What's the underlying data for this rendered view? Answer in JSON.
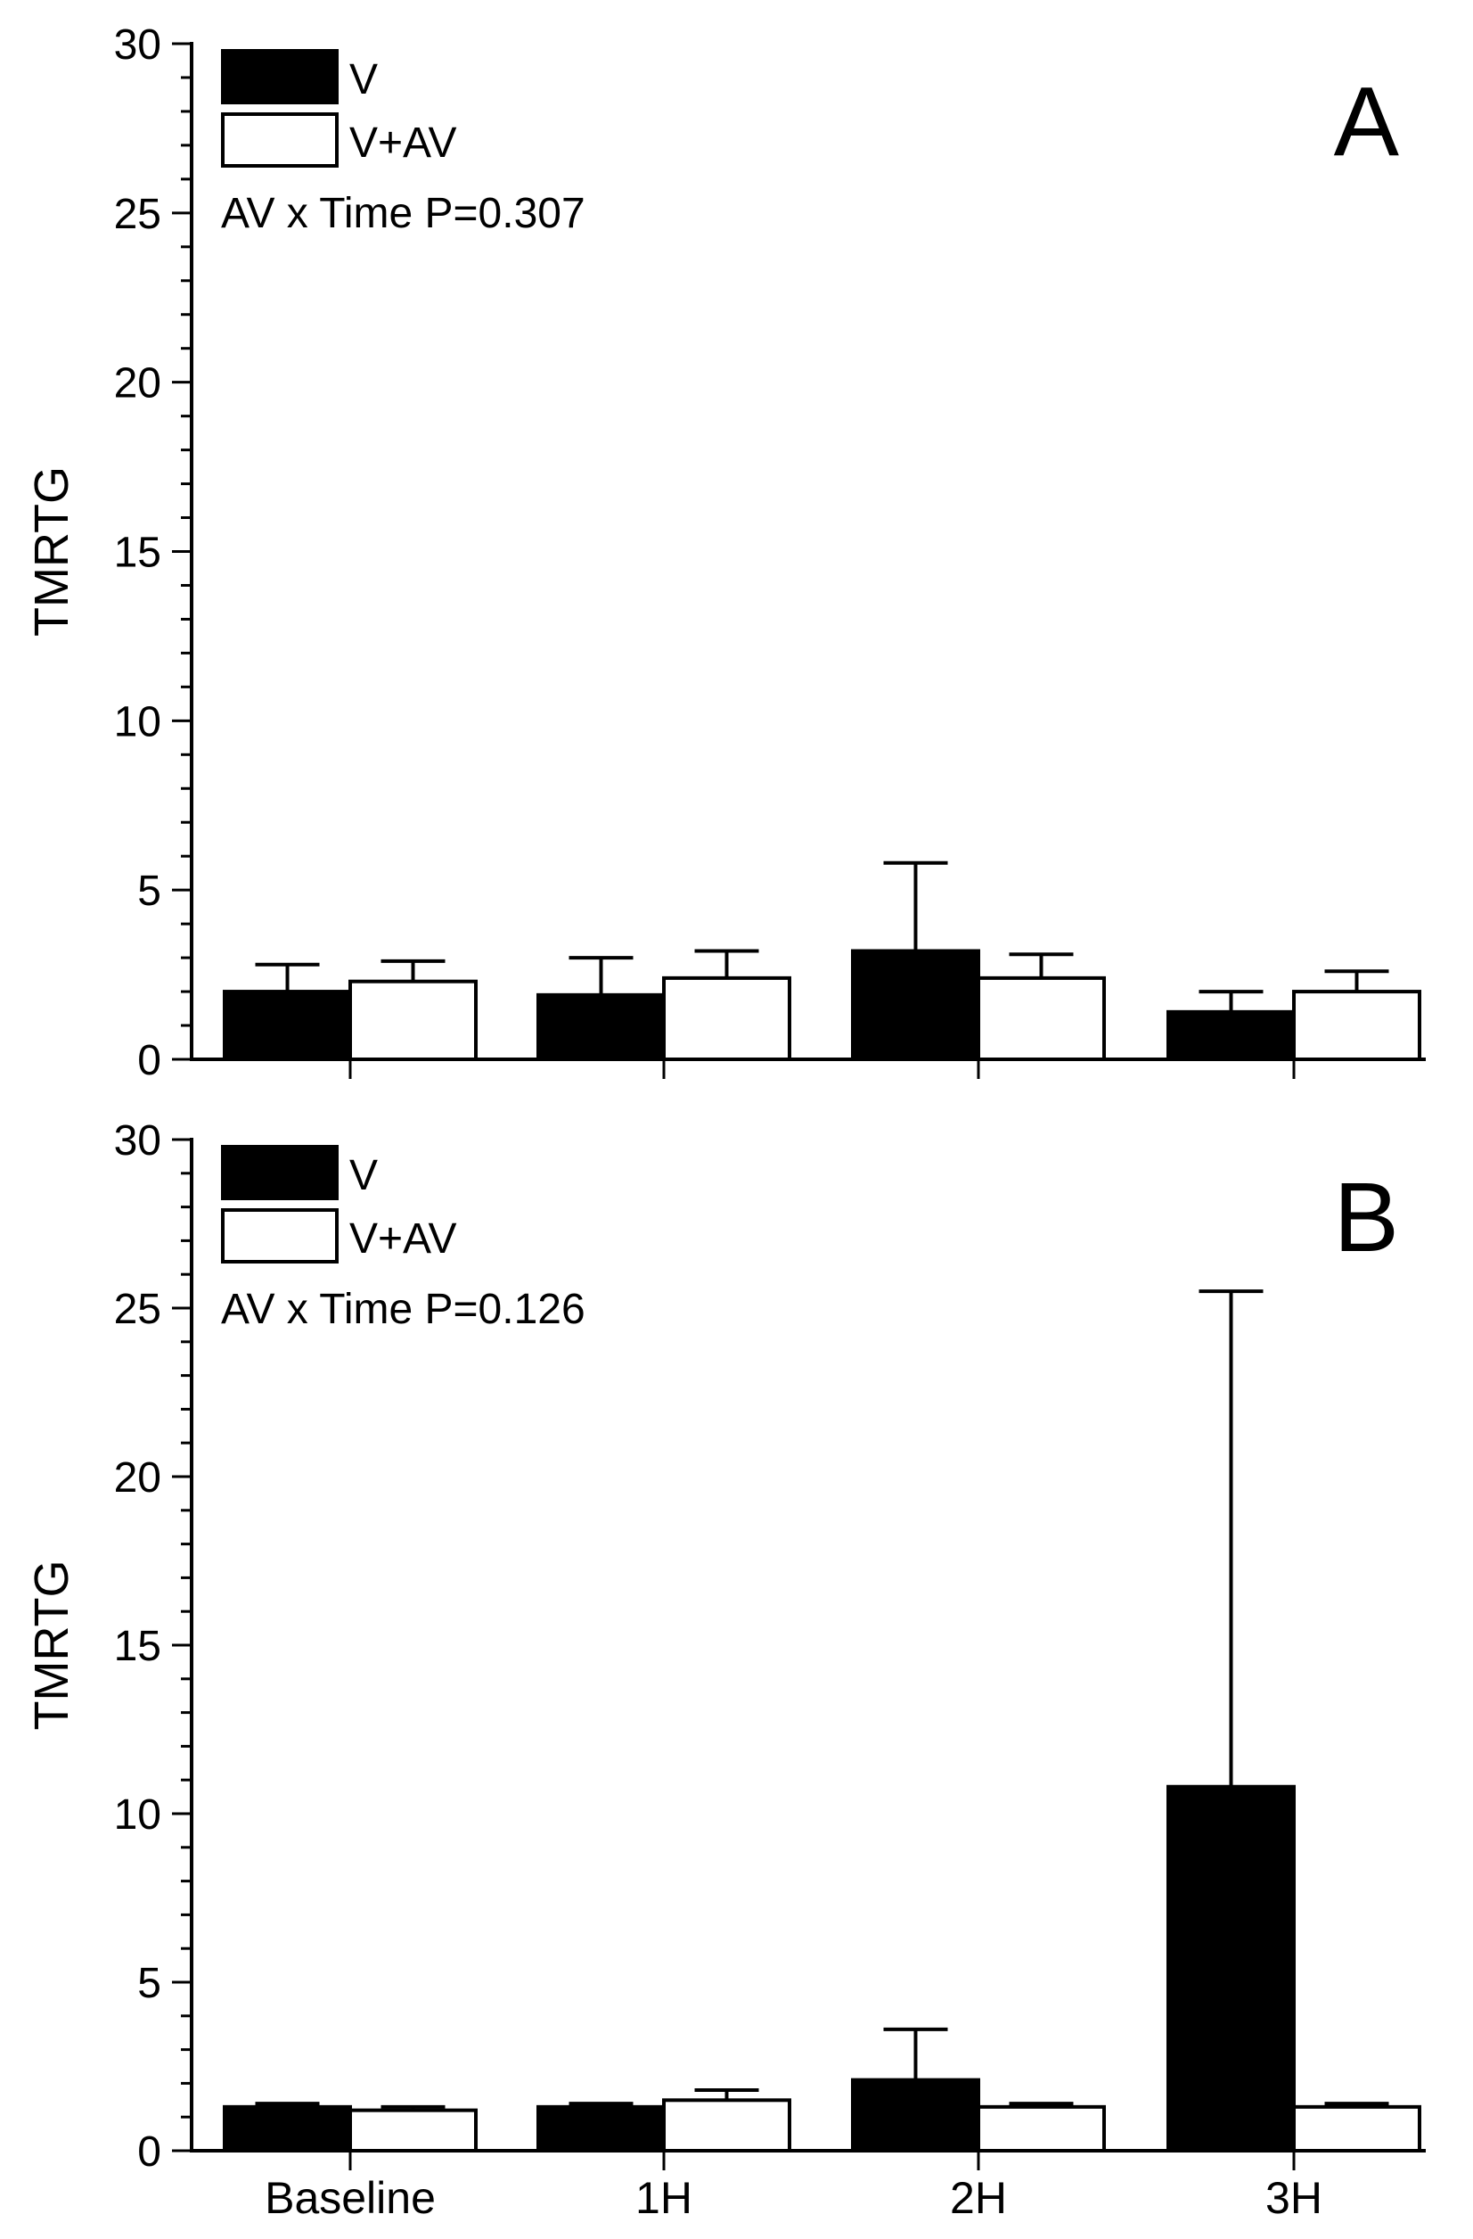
{
  "chart_data": [
    {
      "type": "bar",
      "panel_label": "A",
      "ylabel": "TMRTG",
      "xlabel": "",
      "ylim": [
        0,
        30
      ],
      "yticks": [
        "0",
        "5",
        "10",
        "15",
        "20",
        "25",
        "30"
      ],
      "categories": [
        "Baseline",
        "1H",
        "2H",
        "3H"
      ],
      "annotation": "AV x Time P=0.307",
      "legend_position": "top-left",
      "show_xticklabels": false,
      "series": [
        {
          "name": "V",
          "fill": "#000000",
          "values": [
            2.0,
            1.9,
            3.2,
            1.4
          ],
          "errors": [
            0.8,
            1.1,
            2.6,
            0.6
          ]
        },
        {
          "name": "V+AV",
          "fill": "#ffffff",
          "values": [
            2.3,
            2.4,
            2.4,
            2.0
          ],
          "errors": [
            0.6,
            0.8,
            0.7,
            0.6
          ]
        }
      ]
    },
    {
      "type": "bar",
      "panel_label": "B",
      "ylabel": "TMRTG",
      "xlabel": "",
      "ylim": [
        0,
        30
      ],
      "yticks": [
        "0",
        "5",
        "10",
        "15",
        "20",
        "25",
        "30"
      ],
      "categories": [
        "Baseline",
        "1H",
        "2H",
        "3H"
      ],
      "annotation": "AV x Time P=0.126",
      "legend_position": "top-left",
      "show_xticklabels": true,
      "series": [
        {
          "name": "V",
          "fill": "#000000",
          "values": [
            1.3,
            1.3,
            2.1,
            10.8
          ],
          "errors": [
            0.1,
            0.1,
            1.5,
            14.7
          ]
        },
        {
          "name": "V+AV",
          "fill": "#ffffff",
          "values": [
            1.2,
            1.5,
            1.3,
            1.3
          ],
          "errors": [
            0.1,
            0.3,
            0.1,
            0.1
          ]
        }
      ]
    }
  ]
}
